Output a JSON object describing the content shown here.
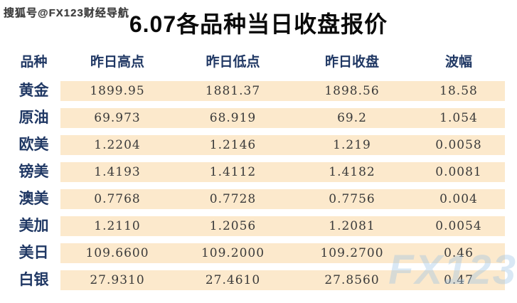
{
  "watermark_top": "搜狐号@FX123财经导航",
  "watermark_corner": "FX123",
  "title": "6.07各品种当日收盘报价",
  "table": {
    "headers": [
      "品种",
      "昨日高点",
      "昨日低点",
      "昨日收盘",
      "波幅"
    ],
    "rows": [
      {
        "name": "黄金",
        "high": "1899.95",
        "low": "1881.37",
        "close": "1898.56",
        "range": "18.58"
      },
      {
        "name": "原油",
        "high": "69.973",
        "low": "68.919",
        "close": "69.2",
        "range": "1.054"
      },
      {
        "name": "欧美",
        "high": "1.2204",
        "low": "1.2146",
        "close": "1.219",
        "range": "0.0058"
      },
      {
        "name": "镑美",
        "high": "1.4193",
        "low": "1.4112",
        "close": "1.4182",
        "range": "0.0081"
      },
      {
        "name": "澳美",
        "high": "0.7768",
        "low": "0.7728",
        "close": "0.7756",
        "range": "0.004"
      },
      {
        "name": "美加",
        "high": "1.2110",
        "low": "1.2056",
        "close": "1.2081",
        "range": "0.0054"
      },
      {
        "name": "美日",
        "high": "109.6600",
        "low": "109.2000",
        "close": "109.2700",
        "range": "0.46"
      },
      {
        "name": "白银",
        "high": "27.9310",
        "low": "27.4610",
        "close": "27.8560",
        "range": "0.47"
      }
    ]
  },
  "colors": {
    "header_text": "#203864",
    "row_background": "#fce9cc",
    "watermark_blue": "#9cc3e5",
    "title_text": "#0a0a0a"
  },
  "chart_data": {
    "type": "table",
    "title": "6.07各品种当日收盘报价",
    "columns": [
      "品种",
      "昨日高点",
      "昨日低点",
      "昨日收盘",
      "波幅"
    ],
    "rows": [
      [
        "黄金",
        1899.95,
        1881.37,
        1898.56,
        18.58
      ],
      [
        "原油",
        69.973,
        68.919,
        69.2,
        1.054
      ],
      [
        "欧美",
        1.2204,
        1.2146,
        1.219,
        0.0058
      ],
      [
        "镑美",
        1.4193,
        1.4112,
        1.4182,
        0.0081
      ],
      [
        "澳美",
        0.7768,
        0.7728,
        0.7756,
        0.004
      ],
      [
        "美加",
        1.211,
        1.2056,
        1.2081,
        0.0054
      ],
      [
        "美日",
        109.66,
        109.2,
        109.27,
        0.46
      ],
      [
        "白银",
        27.931,
        27.461,
        27.856,
        0.47
      ]
    ]
  }
}
